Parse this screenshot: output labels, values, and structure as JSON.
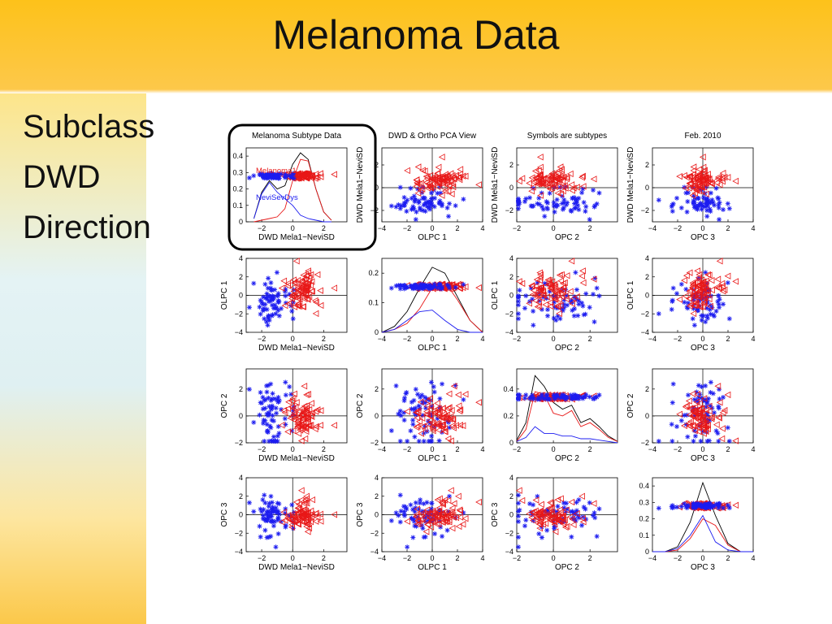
{
  "slide": {
    "title": "Melanoma Data",
    "bullets": [
      "Subclass",
      "DWD",
      "Direction"
    ]
  },
  "colors": {
    "class1": "#e81818",
    "class2": "#1c1cf0",
    "combined": "#000000",
    "highlight_border": "#000000"
  },
  "chart_data": {
    "type": "scatter",
    "layout": "scatterplot-matrix 4x4",
    "variables": [
      "DWD Mela1−NeviSD",
      "OLPC 1",
      "OPC 2",
      "OPC 3"
    ],
    "column_titles": [
      "Melanoma Subtype Data",
      "DWD & Ortho PCA View",
      "Symbols are subtypes",
      "Feb. 2010"
    ],
    "diagonal": "kernel density estimates with jittered 1-D data",
    "highlighted_panel": "row 1, column 1",
    "classes": [
      {
        "name": "Melanoma1",
        "marker": "left-triangle",
        "color": "#e81818"
      },
      {
        "name": "NeviSevDys",
        "marker": "asterisk",
        "color": "#1c1cf0"
      }
    ],
    "axes": {
      "DWD Mela1−NeviSD": {
        "lim": [
          -3,
          3.5
        ],
        "ticks": [
          -2,
          0,
          2
        ]
      },
      "OLPC 1": {
        "lim": [
          -4,
          4
        ],
        "ticks": [
          -4,
          -2,
          0,
          2,
          4
        ]
      },
      "OPC 2": {
        "lim": [
          -2,
          3.5
        ],
        "ticks": [
          -2,
          0,
          2
        ]
      },
      "OPC 3": {
        "lim": [
          -4,
          4
        ],
        "ticks": [
          -4,
          -2,
          0,
          2,
          4
        ]
      }
    },
    "diagonal_ylims": [
      [
        0,
        0.45
      ],
      [
        0,
        0.25
      ],
      [
        0,
        0.55
      ],
      [
        0,
        0.45
      ]
    ],
    "diagonal_yticks": [
      [
        0,
        0.1,
        0.2,
        0.3,
        0.4
      ],
      [
        0,
        0.1,
        0.2
      ],
      [
        0,
        0.2,
        0.4
      ],
      [
        0,
        0.1,
        0.2,
        0.3,
        0.4
      ]
    ],
    "diagonal_densities": [
      {
        "variable": "DWD Mela1−NeviSD",
        "combined": [
          [
            -2.5,
            0.02
          ],
          [
            -2,
            0.18
          ],
          [
            -1.5,
            0.25
          ],
          [
            -1,
            0.2
          ],
          [
            -0.5,
            0.22
          ],
          [
            0,
            0.35
          ],
          [
            0.5,
            0.42
          ],
          [
            1,
            0.38
          ],
          [
            1.5,
            0.2
          ],
          [
            2,
            0.06
          ],
          [
            2.5,
            0.01
          ]
        ],
        "class1": [
          [
            -2.5,
            0.0
          ],
          [
            -2,
            0.01
          ],
          [
            -1.5,
            0.02
          ],
          [
            -1,
            0.03
          ],
          [
            -0.5,
            0.08
          ],
          [
            0,
            0.25
          ],
          [
            0.5,
            0.38
          ],
          [
            1,
            0.37
          ],
          [
            1.5,
            0.2
          ],
          [
            2,
            0.06
          ],
          [
            2.5,
            0.01
          ]
        ],
        "class2": [
          [
            -2.5,
            0.02
          ],
          [
            -2,
            0.17
          ],
          [
            -1.5,
            0.24
          ],
          [
            -1,
            0.18
          ],
          [
            -0.5,
            0.14
          ],
          [
            0,
            0.1
          ],
          [
            0.5,
            0.04
          ],
          [
            1,
            0.02
          ],
          [
            1.5,
            0.01
          ],
          [
            2,
            0.0
          ],
          [
            2.5,
            0.0
          ]
        ]
      },
      {
        "variable": "OLPC 1",
        "combined": [
          [
            -4,
            0.0
          ],
          [
            -3,
            0.02
          ],
          [
            -2,
            0.07
          ],
          [
            -1,
            0.15
          ],
          [
            0,
            0.22
          ],
          [
            1,
            0.2
          ],
          [
            2,
            0.12
          ],
          [
            3,
            0.04
          ],
          [
            4,
            0.0
          ]
        ],
        "class1": [
          [
            -4,
            0.0
          ],
          [
            -3,
            0.01
          ],
          [
            -2,
            0.03
          ],
          [
            -1,
            0.08
          ],
          [
            0,
            0.15
          ],
          [
            1,
            0.17
          ],
          [
            2,
            0.11
          ],
          [
            3,
            0.04
          ],
          [
            4,
            0.0
          ]
        ],
        "class2": [
          [
            -4,
            0.0
          ],
          [
            -3,
            0.01
          ],
          [
            -2,
            0.04
          ],
          [
            -1,
            0.07
          ],
          [
            0,
            0.075
          ],
          [
            1,
            0.04
          ],
          [
            2,
            0.01
          ],
          [
            3,
            0.0
          ],
          [
            4,
            0.0
          ]
        ]
      },
      {
        "variable": "OPC 2",
        "combined": [
          [
            -2,
            0.02
          ],
          [
            -1.5,
            0.15
          ],
          [
            -1,
            0.5
          ],
          [
            -0.5,
            0.42
          ],
          [
            0,
            0.3
          ],
          [
            0.5,
            0.25
          ],
          [
            1,
            0.28
          ],
          [
            1.5,
            0.15
          ],
          [
            2,
            0.18
          ],
          [
            2.5,
            0.12
          ],
          [
            3,
            0.05
          ],
          [
            3.5,
            0.01
          ]
        ],
        "class1": [
          [
            -2,
            0.01
          ],
          [
            -1.5,
            0.1
          ],
          [
            -1,
            0.38
          ],
          [
            -0.5,
            0.36
          ],
          [
            0,
            0.22
          ],
          [
            0.5,
            0.2
          ],
          [
            1,
            0.24
          ],
          [
            1.5,
            0.12
          ],
          [
            2,
            0.15
          ],
          [
            2.5,
            0.1
          ],
          [
            3,
            0.04
          ],
          [
            3.5,
            0.01
          ]
        ],
        "class2": [
          [
            -2,
            0.01
          ],
          [
            -1.5,
            0.04
          ],
          [
            -1,
            0.12
          ],
          [
            -0.5,
            0.07
          ],
          [
            0,
            0.07
          ],
          [
            0.5,
            0.05
          ],
          [
            1,
            0.05
          ],
          [
            1.5,
            0.03
          ],
          [
            2,
            0.03
          ],
          [
            2.5,
            0.02
          ],
          [
            3,
            0.01
          ],
          [
            3.5,
            0.0
          ]
        ]
      },
      {
        "variable": "OPC 3",
        "combined": [
          [
            -4,
            0.0
          ],
          [
            -3,
            0.0
          ],
          [
            -2,
            0.03
          ],
          [
            -1,
            0.18
          ],
          [
            0,
            0.42
          ],
          [
            1,
            0.22
          ],
          [
            2,
            0.05
          ],
          [
            3,
            0.0
          ],
          [
            4,
            0.0
          ]
        ],
        "class1": [
          [
            -4,
            0.0
          ],
          [
            -3,
            0.0
          ],
          [
            -2,
            0.01
          ],
          [
            -1,
            0.08
          ],
          [
            0,
            0.2
          ],
          [
            1,
            0.16
          ],
          [
            2,
            0.04
          ],
          [
            3,
            0.0
          ],
          [
            4,
            0.0
          ]
        ],
        "class2": [
          [
            -4,
            0.0
          ],
          [
            -3,
            0.0
          ],
          [
            -2,
            0.02
          ],
          [
            -1,
            0.1
          ],
          [
            0,
            0.22
          ],
          [
            1,
            0.06
          ],
          [
            2,
            0.01
          ],
          [
            3,
            0.0
          ],
          [
            4,
            0.0
          ]
        ]
      }
    ],
    "diagonal_class_labels": {
      "class1": "Melanoma1",
      "class2": "NeviSevDys"
    },
    "point_counts": {
      "class1": 90,
      "class2": 70
    }
  }
}
